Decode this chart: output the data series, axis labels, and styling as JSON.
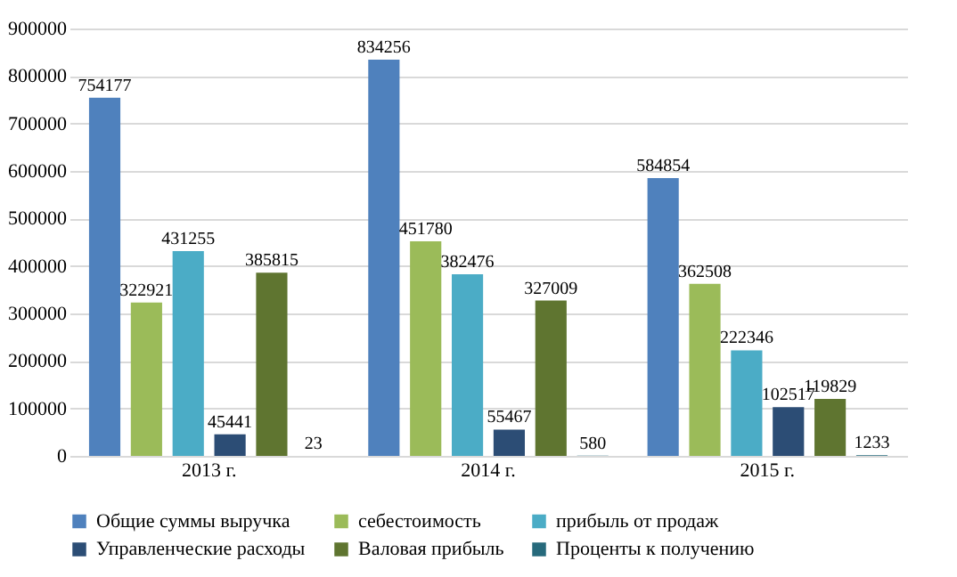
{
  "chart_data": {
    "type": "bar",
    "categories": [
      "2013 г.",
      "2014 г.",
      "2015 г."
    ],
    "series": [
      {
        "name": "Общие суммы выручка",
        "color": "#4f81bd",
        "values": [
          754177,
          834256,
          584854
        ]
      },
      {
        "name": "себестоимость",
        "color": "#9bbb59",
        "values": [
          322921,
          451780,
          362508
        ]
      },
      {
        "name": "прибыль от продаж",
        "color": "#4bacc6",
        "values": [
          431255,
          382476,
          222346
        ]
      },
      {
        "name": "Управленческие расходы",
        "color": "#2c4d75",
        "values": [
          45441,
          55467,
          102517
        ]
      },
      {
        "name": "Валовая прибыль",
        "color": "#5f7530",
        "values": [
          385815,
          327009,
          119829
        ]
      },
      {
        "name": "Проценты к получению",
        "color": "#276a7c",
        "values": [
          23,
          580,
          1233
        ]
      }
    ],
    "ylim": [
      0,
      900000
    ],
    "yticks": [
      0,
      100000,
      200000,
      300000,
      400000,
      500000,
      600000,
      700000,
      800000,
      900000
    ],
    "grid": "y",
    "legend": "bottom",
    "data_labels": true
  }
}
